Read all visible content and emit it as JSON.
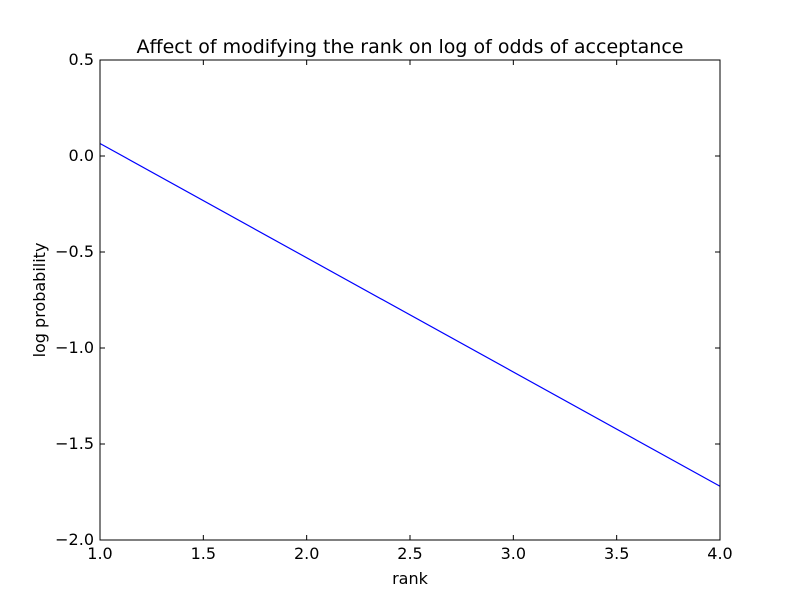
{
  "chart_data": {
    "type": "line",
    "title": "Affect of modifying the rank on log of odds of acceptance",
    "xlabel": "rank",
    "ylabel": "log probability",
    "xlim": [
      1.0,
      4.0
    ],
    "ylim": [
      -2.0,
      0.5
    ],
    "x_ticks": [
      "1.0",
      "1.5",
      "2.0",
      "2.5",
      "3.0",
      "3.5",
      "4.0"
    ],
    "y_ticks": [
      "−2.0",
      "−1.5",
      "−1.0",
      "−0.5",
      "0.0",
      "0.5"
    ],
    "grid": false,
    "legend": "none",
    "series": [
      {
        "color": "#0000ff",
        "x": [
          1.0,
          4.0
        ],
        "y": [
          0.065,
          -1.72
        ]
      }
    ]
  }
}
